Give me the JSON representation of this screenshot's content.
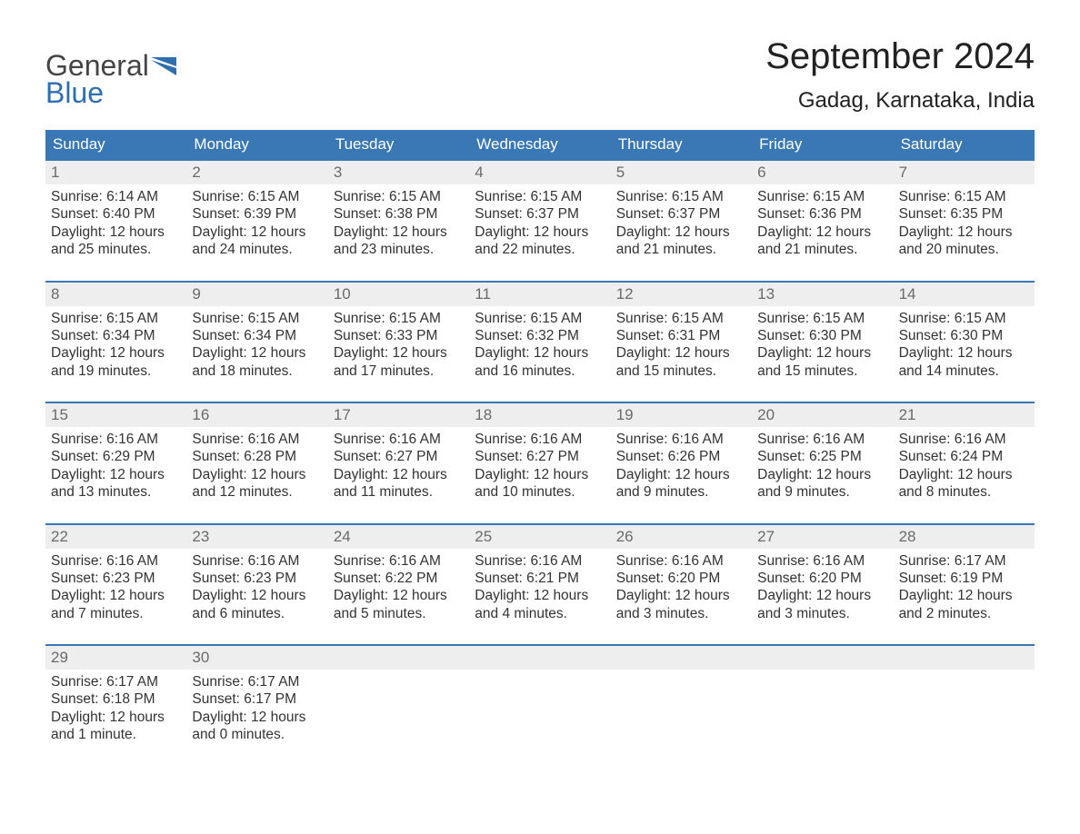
{
  "brand": {
    "general": "General",
    "blue": "Blue",
    "flag_color": "#2f6fb0"
  },
  "title": "September 2024",
  "location": "Gadag, Karnataka, India",
  "styling": {
    "header_bg": "#3a78b5",
    "header_text": "#ffffff",
    "daynum_bg": "#eeeeee",
    "daynum_text": "#6a6a6a",
    "body_text": "#333333",
    "row_border": "#3a78b5",
    "page_bg": "#ffffff",
    "title_fontsize": 40,
    "location_fontsize": 24,
    "weekday_fontsize": 17,
    "content_fontsize": 15.5
  },
  "weekdays": [
    "Sunday",
    "Monday",
    "Tuesday",
    "Wednesday",
    "Thursday",
    "Friday",
    "Saturday"
  ],
  "weeks": [
    [
      {
        "day": "1",
        "sunrise": "Sunrise: 6:14 AM",
        "sunset": "Sunset: 6:40 PM",
        "dl1": "Daylight: 12 hours",
        "dl2": "and 25 minutes."
      },
      {
        "day": "2",
        "sunrise": "Sunrise: 6:15 AM",
        "sunset": "Sunset: 6:39 PM",
        "dl1": "Daylight: 12 hours",
        "dl2": "and 24 minutes."
      },
      {
        "day": "3",
        "sunrise": "Sunrise: 6:15 AM",
        "sunset": "Sunset: 6:38 PM",
        "dl1": "Daylight: 12 hours",
        "dl2": "and 23 minutes."
      },
      {
        "day": "4",
        "sunrise": "Sunrise: 6:15 AM",
        "sunset": "Sunset: 6:37 PM",
        "dl1": "Daylight: 12 hours",
        "dl2": "and 22 minutes."
      },
      {
        "day": "5",
        "sunrise": "Sunrise: 6:15 AM",
        "sunset": "Sunset: 6:37 PM",
        "dl1": "Daylight: 12 hours",
        "dl2": "and 21 minutes."
      },
      {
        "day": "6",
        "sunrise": "Sunrise: 6:15 AM",
        "sunset": "Sunset: 6:36 PM",
        "dl1": "Daylight: 12 hours",
        "dl2": "and 21 minutes."
      },
      {
        "day": "7",
        "sunrise": "Sunrise: 6:15 AM",
        "sunset": "Sunset: 6:35 PM",
        "dl1": "Daylight: 12 hours",
        "dl2": "and 20 minutes."
      }
    ],
    [
      {
        "day": "8",
        "sunrise": "Sunrise: 6:15 AM",
        "sunset": "Sunset: 6:34 PM",
        "dl1": "Daylight: 12 hours",
        "dl2": "and 19 minutes."
      },
      {
        "day": "9",
        "sunrise": "Sunrise: 6:15 AM",
        "sunset": "Sunset: 6:34 PM",
        "dl1": "Daylight: 12 hours",
        "dl2": "and 18 minutes."
      },
      {
        "day": "10",
        "sunrise": "Sunrise: 6:15 AM",
        "sunset": "Sunset: 6:33 PM",
        "dl1": "Daylight: 12 hours",
        "dl2": "and 17 minutes."
      },
      {
        "day": "11",
        "sunrise": "Sunrise: 6:15 AM",
        "sunset": "Sunset: 6:32 PM",
        "dl1": "Daylight: 12 hours",
        "dl2": "and 16 minutes."
      },
      {
        "day": "12",
        "sunrise": "Sunrise: 6:15 AM",
        "sunset": "Sunset: 6:31 PM",
        "dl1": "Daylight: 12 hours",
        "dl2": "and 15 minutes."
      },
      {
        "day": "13",
        "sunrise": "Sunrise: 6:15 AM",
        "sunset": "Sunset: 6:30 PM",
        "dl1": "Daylight: 12 hours",
        "dl2": "and 15 minutes."
      },
      {
        "day": "14",
        "sunrise": "Sunrise: 6:15 AM",
        "sunset": "Sunset: 6:30 PM",
        "dl1": "Daylight: 12 hours",
        "dl2": "and 14 minutes."
      }
    ],
    [
      {
        "day": "15",
        "sunrise": "Sunrise: 6:16 AM",
        "sunset": "Sunset: 6:29 PM",
        "dl1": "Daylight: 12 hours",
        "dl2": "and 13 minutes."
      },
      {
        "day": "16",
        "sunrise": "Sunrise: 6:16 AM",
        "sunset": "Sunset: 6:28 PM",
        "dl1": "Daylight: 12 hours",
        "dl2": "and 12 minutes."
      },
      {
        "day": "17",
        "sunrise": "Sunrise: 6:16 AM",
        "sunset": "Sunset: 6:27 PM",
        "dl1": "Daylight: 12 hours",
        "dl2": "and 11 minutes."
      },
      {
        "day": "18",
        "sunrise": "Sunrise: 6:16 AM",
        "sunset": "Sunset: 6:27 PM",
        "dl1": "Daylight: 12 hours",
        "dl2": "and 10 minutes."
      },
      {
        "day": "19",
        "sunrise": "Sunrise: 6:16 AM",
        "sunset": "Sunset: 6:26 PM",
        "dl1": "Daylight: 12 hours",
        "dl2": "and 9 minutes."
      },
      {
        "day": "20",
        "sunrise": "Sunrise: 6:16 AM",
        "sunset": "Sunset: 6:25 PM",
        "dl1": "Daylight: 12 hours",
        "dl2": "and 9 minutes."
      },
      {
        "day": "21",
        "sunrise": "Sunrise: 6:16 AM",
        "sunset": "Sunset: 6:24 PM",
        "dl1": "Daylight: 12 hours",
        "dl2": "and 8 minutes."
      }
    ],
    [
      {
        "day": "22",
        "sunrise": "Sunrise: 6:16 AM",
        "sunset": "Sunset: 6:23 PM",
        "dl1": "Daylight: 12 hours",
        "dl2": "and 7 minutes."
      },
      {
        "day": "23",
        "sunrise": "Sunrise: 6:16 AM",
        "sunset": "Sunset: 6:23 PM",
        "dl1": "Daylight: 12 hours",
        "dl2": "and 6 minutes."
      },
      {
        "day": "24",
        "sunrise": "Sunrise: 6:16 AM",
        "sunset": "Sunset: 6:22 PM",
        "dl1": "Daylight: 12 hours",
        "dl2": "and 5 minutes."
      },
      {
        "day": "25",
        "sunrise": "Sunrise: 6:16 AM",
        "sunset": "Sunset: 6:21 PM",
        "dl1": "Daylight: 12 hours",
        "dl2": "and 4 minutes."
      },
      {
        "day": "26",
        "sunrise": "Sunrise: 6:16 AM",
        "sunset": "Sunset: 6:20 PM",
        "dl1": "Daylight: 12 hours",
        "dl2": "and 3 minutes."
      },
      {
        "day": "27",
        "sunrise": "Sunrise: 6:16 AM",
        "sunset": "Sunset: 6:20 PM",
        "dl1": "Daylight: 12 hours",
        "dl2": "and 3 minutes."
      },
      {
        "day": "28",
        "sunrise": "Sunrise: 6:17 AM",
        "sunset": "Sunset: 6:19 PM",
        "dl1": "Daylight: 12 hours",
        "dl2": "and 2 minutes."
      }
    ],
    [
      {
        "day": "29",
        "sunrise": "Sunrise: 6:17 AM",
        "sunset": "Sunset: 6:18 PM",
        "dl1": "Daylight: 12 hours",
        "dl2": "and 1 minute."
      },
      {
        "day": "30",
        "sunrise": "Sunrise: 6:17 AM",
        "sunset": "Sunset: 6:17 PM",
        "dl1": "Daylight: 12 hours",
        "dl2": "and 0 minutes."
      },
      null,
      null,
      null,
      null,
      null
    ]
  ]
}
